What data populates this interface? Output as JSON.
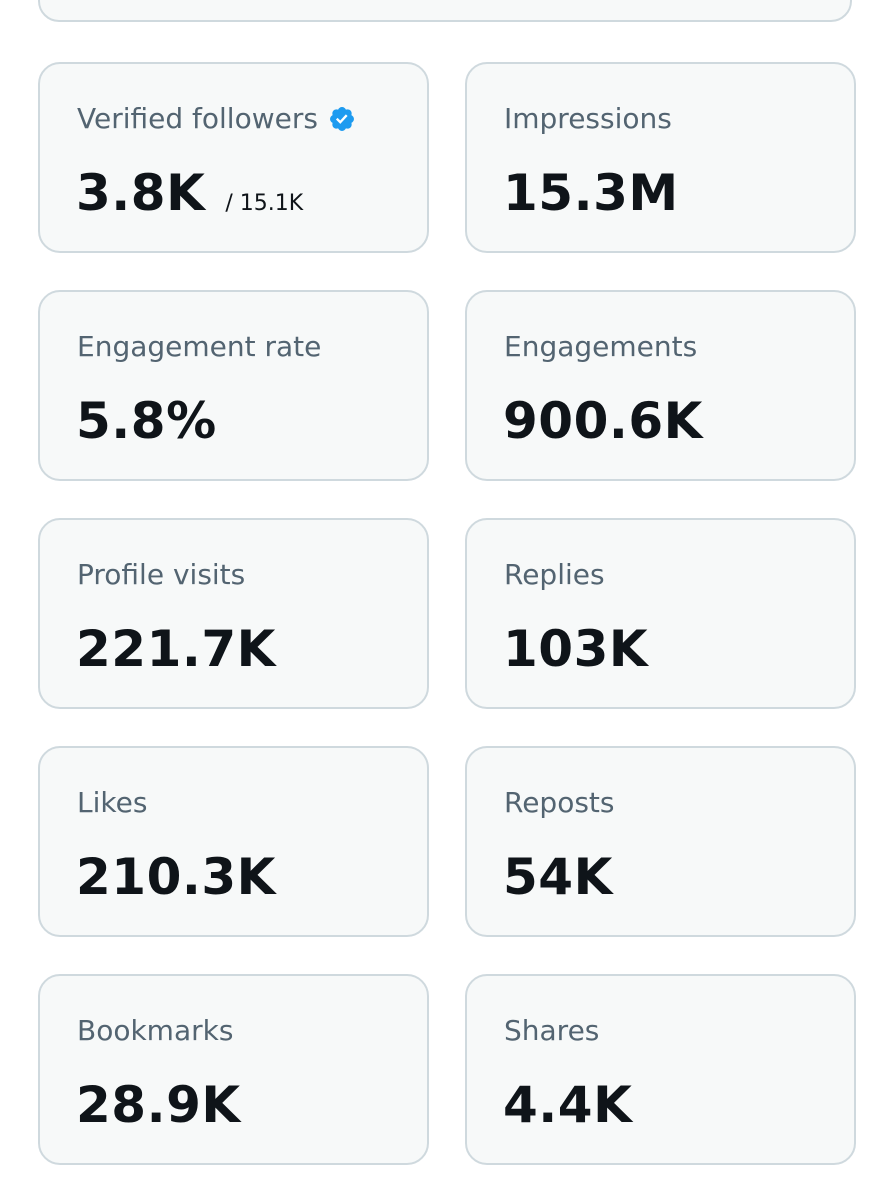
{
  "colors": {
    "card_background": "#f7f9f9",
    "card_border": "#cfd9de",
    "label_text": "#536471",
    "value_text": "#0f1419",
    "verified_badge": "#1d9bf0"
  },
  "metrics": [
    {
      "label": "Verified followers",
      "value": "3.8K",
      "total": "/ 15.1K",
      "badge_icon": "verified-badge-icon"
    },
    {
      "label": "Impressions",
      "value": "15.3M"
    },
    {
      "label": "Engagement rate",
      "value": "5.8%"
    },
    {
      "label": "Engagements",
      "value": "900.6K"
    },
    {
      "label": "Profile visits",
      "value": "221.7K"
    },
    {
      "label": "Replies",
      "value": "103K"
    },
    {
      "label": "Likes",
      "value": "210.3K"
    },
    {
      "label": "Reposts",
      "value": "54K"
    },
    {
      "label": "Bookmarks",
      "value": "28.9K"
    },
    {
      "label": "Shares",
      "value": "4.4K"
    }
  ]
}
